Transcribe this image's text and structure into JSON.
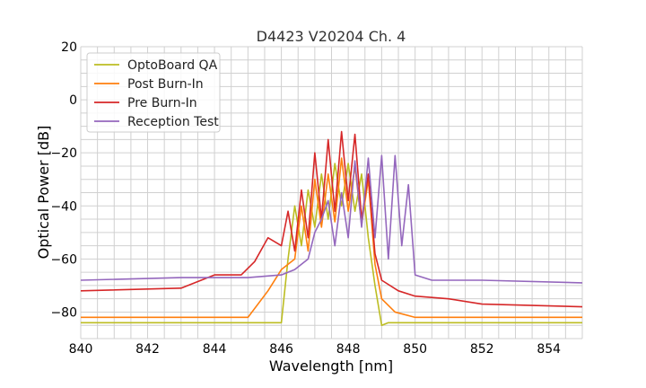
{
  "chart_data": {
    "type": "line",
    "title": "D4423 V20204 Ch. 4",
    "xlabel": "Wavelength [nm]",
    "ylabel": "Optical Power [dB]",
    "xlim": [
      840,
      855
    ],
    "ylim": [
      -90,
      20
    ],
    "xticks": [
      840,
      842,
      844,
      846,
      848,
      850,
      852,
      854
    ],
    "xtick_labels": [
      "840",
      "842",
      "844",
      "846",
      "848",
      "850",
      "852",
      "854"
    ],
    "yticks": [
      20,
      0,
      -20,
      -40,
      -60,
      -80
    ],
    "ytick_labels": [
      "20",
      "0",
      "−20",
      "−40",
      "−60",
      "−80"
    ],
    "grid": true,
    "legend_placement": "top-left",
    "series": [
      {
        "name": "OptoBoard QA",
        "color": "#bcbd22",
        "x": [
          840,
          845.5,
          846.0,
          846.2,
          846.4,
          846.6,
          846.8,
          847.0,
          847.2,
          847.4,
          847.6,
          847.8,
          848.0,
          848.2,
          848.4,
          848.6,
          848.8,
          849.0,
          849.2,
          855
        ],
        "y": [
          -84,
          -84,
          -84,
          -60,
          -40,
          -55,
          -34,
          -48,
          -28,
          -45,
          -24,
          -40,
          -24,
          -42,
          -28,
          -52,
          -70,
          -85,
          -84,
          -84
        ]
      },
      {
        "name": "Post Burn-In",
        "color": "#ff7f0e",
        "x": [
          840,
          845.0,
          845.6,
          846.0,
          846.4,
          846.6,
          846.8,
          847.0,
          847.2,
          847.4,
          847.6,
          847.8,
          848.0,
          848.2,
          848.4,
          848.6,
          848.8,
          849.0,
          849.4,
          850.0,
          855
        ],
        "y": [
          -82,
          -82,
          -72,
          -64,
          -60,
          -40,
          -57,
          -30,
          -48,
          -28,
          -46,
          -22,
          -42,
          -25,
          -47,
          -30,
          -62,
          -75,
          -80,
          -82,
          -82
        ]
      },
      {
        "name": "Pre Burn-In",
        "color": "#d62728",
        "x": [
          840,
          843.0,
          844.0,
          844.8,
          845.2,
          845.6,
          846.0,
          846.2,
          846.4,
          846.6,
          846.8,
          847.0,
          847.2,
          847.4,
          847.6,
          847.8,
          848.0,
          848.2,
          848.4,
          848.6,
          848.8,
          849.0,
          849.5,
          850.0,
          851.0,
          852.0,
          855
        ],
        "y": [
          -72,
          -71,
          -66,
          -66,
          -61,
          -52,
          -55,
          -42,
          -57,
          -34,
          -52,
          -20,
          -45,
          -15,
          -42,
          -12,
          -38,
          -13,
          -45,
          -28,
          -58,
          -68,
          -72,
          -74,
          -75,
          -77,
          -78
        ]
      },
      {
        "name": "Reception Test",
        "color": "#9467bd",
        "x": [
          840,
          843.0,
          845.0,
          846.0,
          846.4,
          846.8,
          847.0,
          847.2,
          847.4,
          847.6,
          847.8,
          848.0,
          848.2,
          848.4,
          848.6,
          848.8,
          849.0,
          849.2,
          849.4,
          849.6,
          849.8,
          850.0,
          850.5,
          852.0,
          855
        ],
        "y": [
          -68,
          -67,
          -67,
          -66,
          -64,
          -60,
          -50,
          -45,
          -38,
          -55,
          -35,
          -52,
          -23,
          -48,
          -22,
          -52,
          -21,
          -60,
          -21,
          -55,
          -32,
          -66,
          -68,
          -68,
          -69
        ]
      }
    ]
  }
}
